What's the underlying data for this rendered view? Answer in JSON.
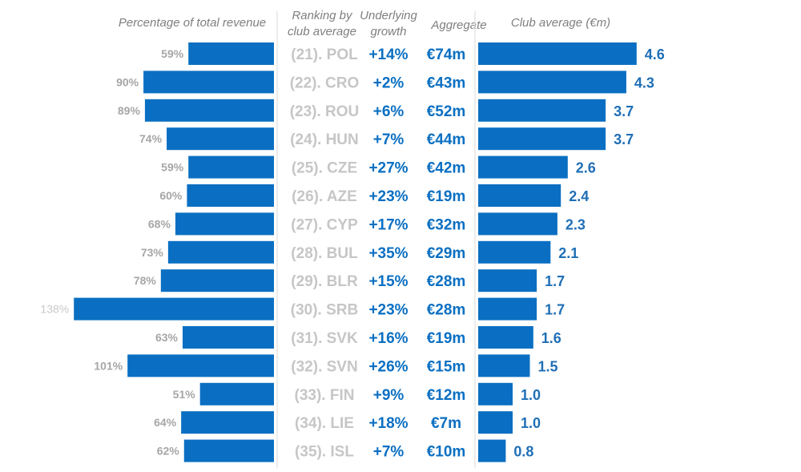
{
  "chart_data": {
    "type": "bar",
    "headers": {
      "pct": "Percentage of total revenue",
      "ranking_line1": "Ranking by",
      "ranking_line2": "club average",
      "growth_line1": "Underlying",
      "growth_line2": "growth",
      "aggregate": "Aggregate",
      "club_avg": "Club average (€m)"
    },
    "categories": [
      "(21). POL",
      "(22). CRO",
      "(23). ROU",
      "(24). HUN",
      "(25). CZE",
      "(26). AZE",
      "(27). CYP",
      "(28). BUL",
      "(29). BLR",
      "(30). SRB",
      "(31). SVK",
      "(32). SVN",
      "(33). FIN",
      "(34). LIE",
      "(35). ISL"
    ],
    "pct_of_revenue": [
      59,
      90,
      89,
      74,
      59,
      60,
      68,
      73,
      78,
      138,
      63,
      101,
      51,
      64,
      62
    ],
    "pct_labels": [
      "59%",
      "90%",
      "89%",
      "74%",
      "59%",
      "60%",
      "68%",
      "73%",
      "78%",
      "138%",
      "63%",
      "101%",
      "51%",
      "64%",
      "62%"
    ],
    "underlying_growth": [
      "+14%",
      "+2%",
      "+6%",
      "+7%",
      "+27%",
      "+23%",
      "+17%",
      "+35%",
      "+15%",
      "+23%",
      "+16%",
      "+26%",
      "+9%",
      "+18%",
      "+7%"
    ],
    "aggregate": [
      "€74m",
      "€43m",
      "€52m",
      "€44m",
      "€42m",
      "€19m",
      "€32m",
      "€29m",
      "€28m",
      "€28m",
      "€19m",
      "€15m",
      "€12m",
      "€7m",
      "€10m"
    ],
    "club_average": [
      4.6,
      4.3,
      3.7,
      3.7,
      2.6,
      2.4,
      2.3,
      2.1,
      1.7,
      1.7,
      1.6,
      1.5,
      1.0,
      1.0,
      0.8
    ],
    "club_average_labels": [
      "4.6",
      "4.3",
      "3.7",
      "3.7",
      "2.6",
      "2.4",
      "2.3",
      "2.1",
      "1.7",
      "1.7",
      "1.6",
      "1.5",
      "1.0",
      "1.0",
      "0.8"
    ],
    "colors": {
      "bar": "#0a6fc2",
      "value_text": "#1f6fb6",
      "muted_text": "#a6a6a6",
      "rank_text": "#c6c6c6"
    }
  }
}
